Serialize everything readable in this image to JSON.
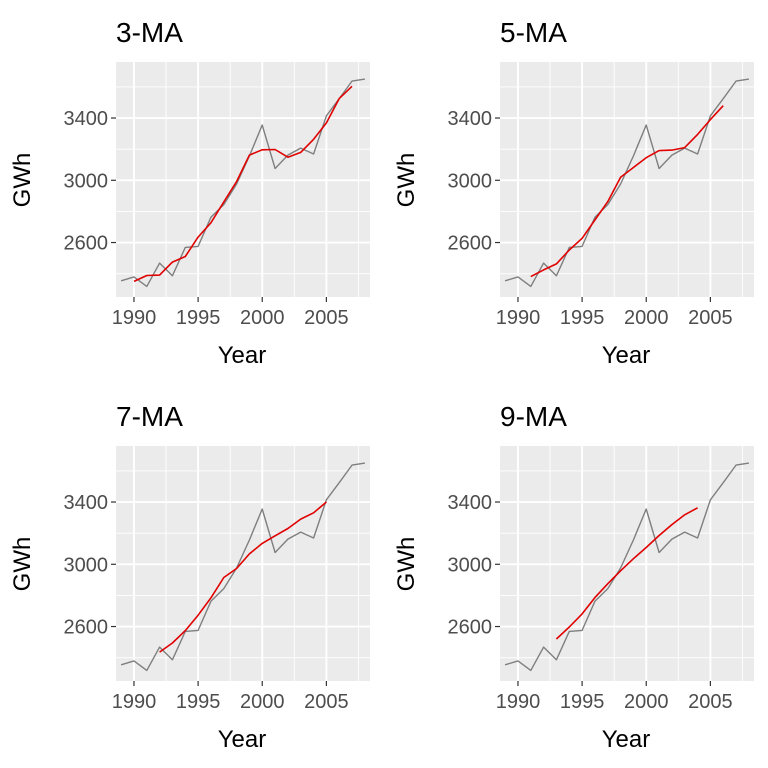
{
  "colors": {
    "panel_bg": "#ebebeb",
    "grid": "#ffffff",
    "original_series": "#7f7f7f",
    "moving_average": "#e00000"
  },
  "chart_data": [
    {
      "type": "line",
      "title": "3-MA",
      "xlabel": "Year",
      "ylabel": "GWh",
      "x_ticks": [
        1990,
        1995,
        2000,
        2005
      ],
      "y_ticks": [
        2600,
        3000,
        3400
      ],
      "xlim": [
        1988.6,
        2008.4
      ],
      "ylim": [
        2250,
        3760
      ],
      "grid": true,
      "series": [
        {
          "role": "original",
          "x": [
            1989,
            1990,
            1991,
            1992,
            1993,
            1994,
            1995,
            1996,
            1997,
            1998,
            1999,
            2000,
            2001,
            2002,
            2003,
            2004,
            2005,
            2006,
            2007,
            2008
          ],
          "values": [
            2354,
            2379,
            2318,
            2468,
            2386,
            2569,
            2575,
            2762,
            2844,
            2976,
            3156,
            3355,
            3076,
            3162,
            3207,
            3169,
            3414,
            3524,
            3637,
            3650
          ]
        },
        {
          "role": "moving-average",
          "x": [
            1990,
            1991,
            1992,
            1993,
            1994,
            1995,
            1996,
            1997,
            1998,
            1999,
            2000,
            2001,
            2002,
            2003,
            2004,
            2005,
            2006,
            2007
          ],
          "values": [
            2350,
            2388,
            2391,
            2474,
            2510,
            2635,
            2727,
            2861,
            2992,
            3162,
            3196,
            3198,
            3148,
            3179,
            3263,
            3369,
            3525,
            3604
          ]
        }
      ]
    },
    {
      "type": "line",
      "title": "5-MA",
      "xlabel": "Year",
      "ylabel": "GWh",
      "x_ticks": [
        1990,
        1995,
        2000,
        2005
      ],
      "y_ticks": [
        2600,
        3000,
        3400
      ],
      "xlim": [
        1988.6,
        2008.4
      ],
      "ylim": [
        2250,
        3760
      ],
      "grid": true,
      "series": [
        {
          "role": "original",
          "x": [
            1989,
            1990,
            1991,
            1992,
            1993,
            1994,
            1995,
            1996,
            1997,
            1998,
            1999,
            2000,
            2001,
            2002,
            2003,
            2004,
            2005,
            2006,
            2007,
            2008
          ],
          "values": [
            2354,
            2379,
            2318,
            2468,
            2386,
            2569,
            2575,
            2762,
            2844,
            2976,
            3156,
            3355,
            3076,
            3162,
            3207,
            3169,
            3414,
            3524,
            3637,
            3650
          ]
        },
        {
          "role": "moving-average",
          "x": [
            1991,
            1992,
            1993,
            1994,
            1995,
            1996,
            1997,
            1998,
            1999,
            2000,
            2001,
            2002,
            2003,
            2004,
            2005,
            2006
          ],
          "values": [
            2381,
            2424,
            2463,
            2552,
            2627,
            2745,
            2863,
            3019,
            3082,
            3145,
            3191,
            3194,
            3210,
            3295,
            3390,
            3479
          ]
        }
      ]
    },
    {
      "type": "line",
      "title": "7-MA",
      "xlabel": "Year",
      "ylabel": "GWh",
      "x_ticks": [
        1990,
        1995,
        2000,
        2005
      ],
      "y_ticks": [
        2600,
        3000,
        3400
      ],
      "xlim": [
        1988.6,
        2008.4
      ],
      "ylim": [
        2250,
        3760
      ],
      "grid": true,
      "series": [
        {
          "role": "original",
          "x": [
            1989,
            1990,
            1991,
            1992,
            1993,
            1994,
            1995,
            1996,
            1997,
            1998,
            1999,
            2000,
            2001,
            2002,
            2003,
            2004,
            2005,
            2006,
            2007,
            2008
          ],
          "values": [
            2354,
            2379,
            2318,
            2468,
            2386,
            2569,
            2575,
            2762,
            2844,
            2976,
            3156,
            3355,
            3076,
            3162,
            3207,
            3169,
            3414,
            3524,
            3637,
            3650
          ]
        },
        {
          "role": "moving-average",
          "x": [
            1992,
            1993,
            1994,
            1995,
            1996,
            1997,
            1998,
            1999,
            2000,
            2001,
            2002,
            2003,
            2004,
            2005
          ],
          "values": [
            2436,
            2494,
            2574,
            2673,
            2784,
            2915,
            2973,
            3067,
            3134,
            3183,
            3230,
            3290,
            3331,
            3400
          ]
        }
      ]
    },
    {
      "type": "line",
      "title": "9-MA",
      "xlabel": "Year",
      "ylabel": "GWh",
      "x_ticks": [
        1990,
        1995,
        2000,
        2005
      ],
      "y_ticks": [
        2600,
        3000,
        3400
      ],
      "xlim": [
        1988.6,
        2008.4
      ],
      "ylim": [
        2250,
        3760
      ],
      "grid": true,
      "series": [
        {
          "role": "original",
          "x": [
            1989,
            1990,
            1991,
            1992,
            1993,
            1994,
            1995,
            1996,
            1997,
            1998,
            1999,
            2000,
            2001,
            2002,
            2003,
            2004,
            2005,
            2006,
            2007,
            2008
          ],
          "values": [
            2354,
            2379,
            2318,
            2468,
            2386,
            2569,
            2575,
            2762,
            2844,
            2976,
            3156,
            3355,
            3076,
            3162,
            3207,
            3169,
            3414,
            3524,
            3637,
            3650
          ]
        },
        {
          "role": "moving-average",
          "x": [
            1993,
            1994,
            1995,
            1996,
            1997,
            1998,
            1999,
            2000,
            2001,
            2002,
            2003,
            2004
          ],
          "values": [
            2520,
            2597,
            2681,
            2786,
            2875,
            2958,
            3036,
            3108,
            3185,
            3255,
            3318,
            3363
          ]
        }
      ]
    }
  ]
}
